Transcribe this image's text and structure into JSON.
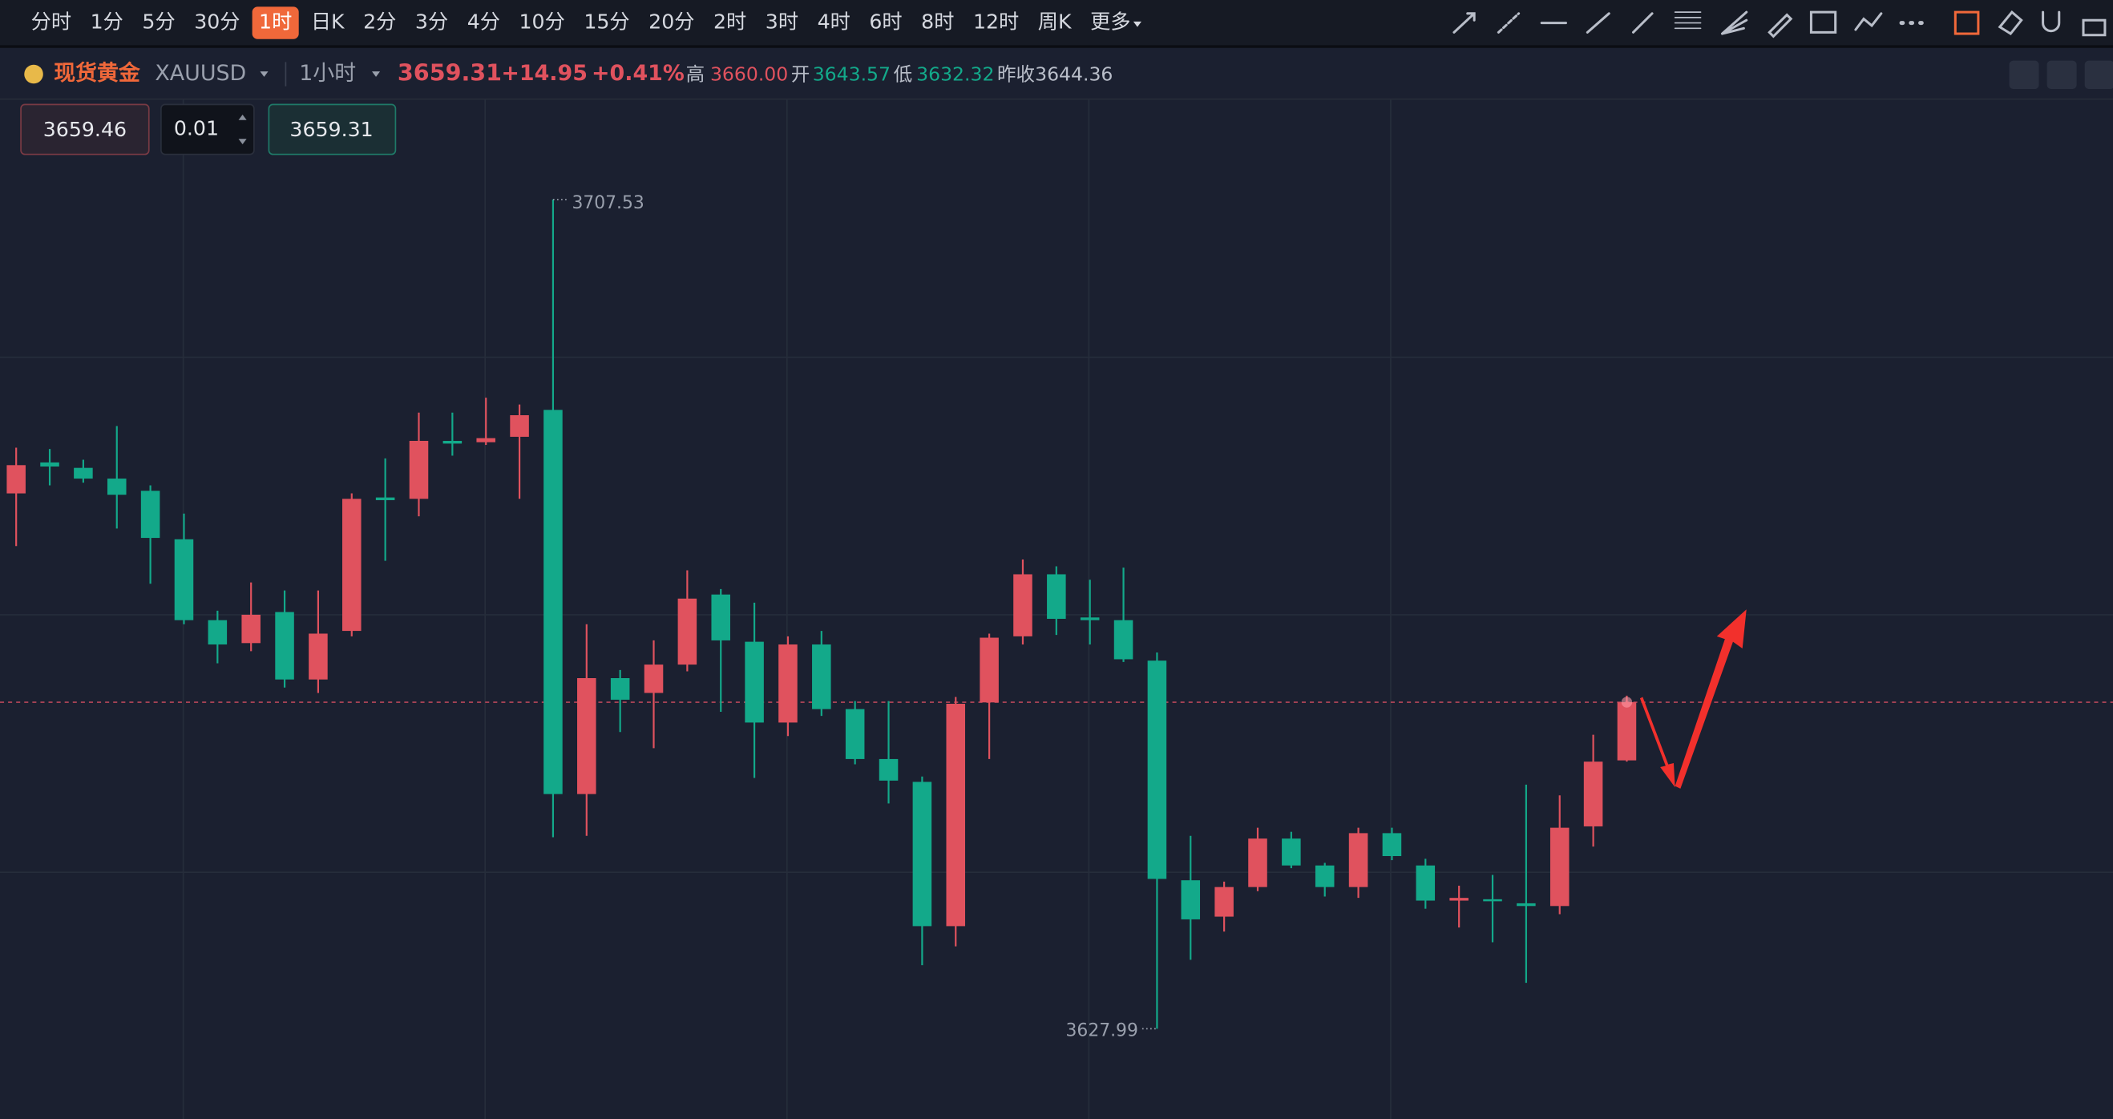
{
  "toolbar": {
    "timeframes": [
      "分时",
      "1分",
      "5分",
      "30分",
      "1时",
      "日K",
      "2分",
      "3分",
      "4分",
      "10分",
      "15分",
      "20分",
      "2时",
      "3时",
      "4时",
      "6时",
      "8时",
      "12时",
      "周K"
    ],
    "selected": "1时",
    "more": "更多"
  },
  "quote": {
    "name": "现货黄金",
    "symbol": "XAUUSD",
    "interval": "1小时",
    "price": "3659.31",
    "change": "+14.95",
    "change_pct": "+0.41%",
    "high_label": "高",
    "high": "3660.00",
    "open_label": "开",
    "open": "3643.57",
    "low_label": "低",
    "low": "3632.32",
    "prev_close_label": "昨收",
    "prev_close": "3644.36"
  },
  "order": {
    "ask": "3659.46",
    "quantity": "0.01",
    "bid": "3659.31"
  },
  "chart_data": {
    "type": "candlestick",
    "up_color": "#e0525e",
    "down_color": "#13a98a",
    "ylim": [
      3619.33,
      3716.97
    ],
    "open": [
      3679.34,
      3682.31,
      3681.79,
      3680.76,
      3679.59,
      3674.94,
      3667.18,
      3664.98,
      3667.96,
      3661.49,
      3666.15,
      3678.95,
      3678.82,
      3684.38,
      3684.25,
      3684.77,
      3687.35,
      3650.5,
      3661.62,
      3660.2,
      3662.92,
      3669.64,
      3665.11,
      3657.36,
      3664.85,
      3658.65,
      3653.86,
      3651.67,
      3637.83,
      3659.29,
      3665.63,
      3671.58,
      3667.44,
      3667.18,
      3663.3,
      3642.23,
      3638.74,
      3641.58,
      3646.23,
      3643.65,
      3641.58,
      3646.75,
      3643.65,
      3640.28,
      3640.41,
      3640.02,
      3639.76,
      3647.4,
      3653.73
    ],
    "high": [
      3683.73,
      3683.6,
      3682.57,
      3685.8,
      3680.11,
      3677.4,
      3668.09,
      3670.8,
      3670.03,
      3670.03,
      3679.34,
      3682.7,
      3687.09,
      3687.09,
      3688.52,
      3687.87,
      3707.53,
      3666.79,
      3662.4,
      3665.24,
      3671.96,
      3670.16,
      3668.86,
      3665.63,
      3666.15,
      3659.42,
      3659.42,
      3652.18,
      3659.81,
      3665.89,
      3673.0,
      3672.35,
      3671.06,
      3672.22,
      3664.08,
      3646.49,
      3642.1,
      3647.27,
      3646.88,
      3643.9,
      3647.27,
      3647.27,
      3644.29,
      3641.71,
      3642.74,
      3651.4,
      3650.37,
      3656.19,
      3659.94
    ],
    "low": [
      3674.29,
      3680.11,
      3680.37,
      3675.97,
      3670.67,
      3666.79,
      3663.04,
      3664.21,
      3660.72,
      3660.2,
      3665.63,
      3672.87,
      3677.14,
      3682.96,
      3683.99,
      3678.82,
      3646.36,
      3646.49,
      3656.45,
      3654.9,
      3662.27,
      3658.39,
      3652.05,
      3656.06,
      3658.0,
      3653.35,
      3649.6,
      3634.08,
      3635.89,
      3653.86,
      3664.85,
      3665.76,
      3664.85,
      3663.17,
      3627.99,
      3634.6,
      3637.31,
      3641.19,
      3643.39,
      3640.67,
      3640.54,
      3644.16,
      3639.5,
      3637.7,
      3636.28,
      3632.39,
      3638.98,
      3645.46,
      3653.61
    ],
    "close": [
      3682.05,
      3681.92,
      3680.76,
      3679.21,
      3675.07,
      3667.18,
      3664.85,
      3667.7,
      3661.49,
      3665.89,
      3678.82,
      3678.69,
      3684.38,
      3684.12,
      3684.64,
      3686.84,
      3650.5,
      3661.62,
      3659.55,
      3662.92,
      3669.25,
      3665.24,
      3657.36,
      3664.85,
      3658.65,
      3653.86,
      3651.79,
      3637.83,
      3659.16,
      3665.5,
      3671.58,
      3667.31,
      3667.18,
      3663.43,
      3642.36,
      3638.48,
      3641.58,
      3646.23,
      3643.65,
      3641.58,
      3646.75,
      3644.55,
      3640.28,
      3640.54,
      3640.28,
      3639.76,
      3647.27,
      3653.61,
      3659.31
    ]
  }
}
